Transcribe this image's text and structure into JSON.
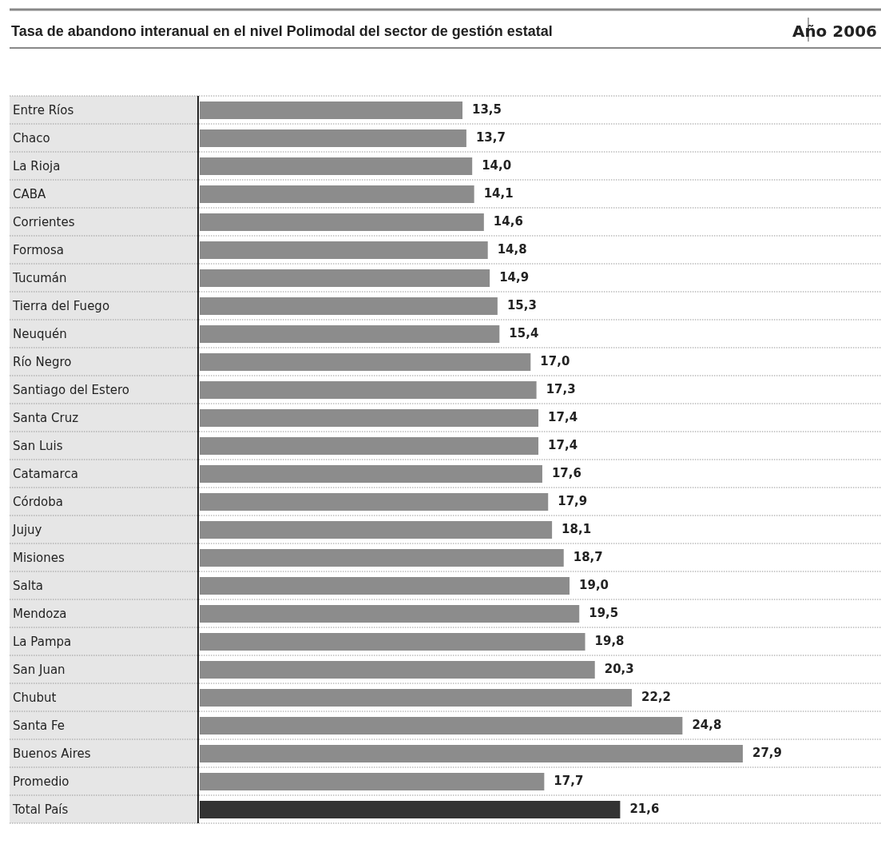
{
  "chart_data": {
    "type": "bar",
    "orientation": "horizontal",
    "title": "Tasa de abandono interanual en el nivel Polimodal del sector de gestión estatal",
    "subtitle": "Año 2006",
    "categories": [
      "Entre Ríos",
      "Chaco",
      "La Rioja",
      "CABA",
      "Corrientes",
      "Formosa",
      "Tucumán",
      "Tierra del Fuego",
      "Neuquén",
      "Río Negro",
      "Santiago del Estero",
      "Santa Cruz",
      "San Luis",
      "Catamarca",
      "Córdoba",
      "Jujuy",
      "Misiones",
      "Salta",
      "Mendoza",
      "La Pampa",
      "San Juan",
      "Chubut",
      "Santa Fe",
      "Buenos Aires",
      "Promedio",
      "Total País"
    ],
    "values": [
      13.5,
      13.7,
      14.0,
      14.1,
      14.6,
      14.8,
      14.9,
      15.3,
      15.4,
      17.0,
      17.3,
      17.4,
      17.4,
      17.6,
      17.9,
      18.1,
      18.7,
      19.0,
      19.5,
      19.8,
      20.3,
      22.2,
      24.8,
      27.9,
      17.7,
      21.6
    ],
    "value_labels": [
      "13,5",
      "13,7",
      "14,0",
      "14,1",
      "14,6",
      "14,8",
      "14,9",
      "15,3",
      "15,4",
      "17,0",
      "17,3",
      "17,4",
      "17,4",
      "17,6",
      "17,9",
      "18,1",
      "18,7",
      "19,0",
      "19,5",
      "19,8",
      "20,3",
      "22,2",
      "24,8",
      "27,9",
      "17,7",
      "21,6"
    ],
    "colors": [
      "#8c8c8c",
      "#8c8c8c",
      "#8c8c8c",
      "#8c8c8c",
      "#8c8c8c",
      "#8c8c8c",
      "#8c8c8c",
      "#8c8c8c",
      "#8c8c8c",
      "#8c8c8c",
      "#8c8c8c",
      "#8c8c8c",
      "#8c8c8c",
      "#8c8c8c",
      "#8c8c8c",
      "#8c8c8c",
      "#8c8c8c",
      "#8c8c8c",
      "#8c8c8c",
      "#8c8c8c",
      "#8c8c8c",
      "#8c8c8c",
      "#8c8c8c",
      "#8c8c8c",
      "#8c8c8c",
      "#333333"
    ],
    "xlim": [
      0,
      35
    ]
  }
}
